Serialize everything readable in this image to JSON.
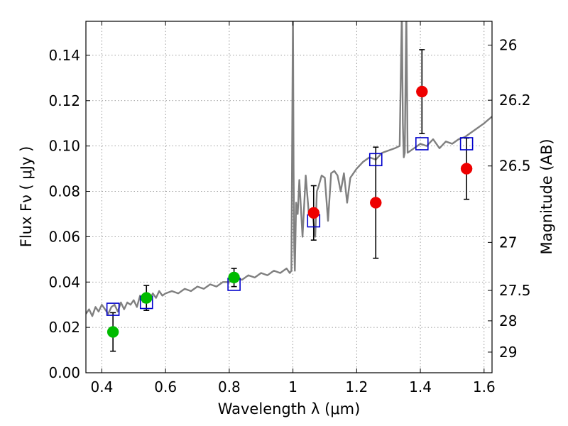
{
  "chart_data": {
    "type": "scatter",
    "title": "",
    "xlabel": "Wavelength  λ (μm)",
    "ylabel": "Flux  Fν  ( μJy )",
    "ylabel_right": "Magnitude (AB)",
    "xlim": [
      0.35,
      1.625
    ],
    "ylim": [
      0.0,
      0.155
    ],
    "grid": true,
    "xticks": [
      0.4,
      0.6,
      0.8,
      1.0,
      1.2,
      1.4,
      1.6
    ],
    "xtick_labels": [
      "0.4",
      "0.6",
      "0.8",
      "1",
      "1.2",
      "1.4",
      "1.6"
    ],
    "yticks": [
      0.0,
      0.02,
      0.04,
      0.06,
      0.08,
      0.1,
      0.12,
      0.14
    ],
    "ytick_labels": [
      "0.00",
      "0.02",
      "0.04",
      "0.06",
      "0.08",
      "0.10",
      "0.12",
      "0.14"
    ],
    "right_ticks": [
      {
        "label": "26",
        "flux": 0.1445
      },
      {
        "label": "26.2",
        "flux": 0.1202
      },
      {
        "label": "26.5",
        "flux": 0.0912
      },
      {
        "label": "27",
        "flux": 0.0575
      },
      {
        "label": "27.5",
        "flux": 0.0363
      },
      {
        "label": "28",
        "flux": 0.0229
      },
      {
        "label": "29",
        "flux": 0.0091
      }
    ],
    "colors": {
      "spectrum": "#808080",
      "model": "#0000cc",
      "green": "#00bb00",
      "red": "#ee0000",
      "errorbar": "#000000",
      "grid": "#808080"
    },
    "series": [
      {
        "kind": "spectrum",
        "x": [
          0.35,
          0.36,
          0.37,
          0.38,
          0.39,
          0.4,
          0.41,
          0.42,
          0.43,
          0.44,
          0.45,
          0.46,
          0.47,
          0.48,
          0.49,
          0.5,
          0.51,
          0.52,
          0.53,
          0.54,
          0.55,
          0.56,
          0.57,
          0.58,
          0.59,
          0.6,
          0.62,
          0.64,
          0.66,
          0.68,
          0.7,
          0.72,
          0.74,
          0.76,
          0.78,
          0.8,
          0.82,
          0.84,
          0.86,
          0.88,
          0.9,
          0.92,
          0.94,
          0.96,
          0.98,
          0.99,
          0.995,
          1.0,
          1.002,
          1.004,
          1.006,
          1.008,
          1.01,
          1.015,
          1.02,
          1.03,
          1.04,
          1.05,
          1.06,
          1.07,
          1.075,
          1.08,
          1.09,
          1.1,
          1.11,
          1.12,
          1.13,
          1.14,
          1.15,
          1.16,
          1.17,
          1.18,
          1.2,
          1.22,
          1.24,
          1.26,
          1.28,
          1.3,
          1.32,
          1.335,
          1.342,
          1.345,
          1.348,
          1.351,
          1.356,
          1.36,
          1.38,
          1.4,
          1.42,
          1.44,
          1.46,
          1.48,
          1.5,
          1.52,
          1.54,
          1.56,
          1.58,
          1.6,
          1.625
        ],
        "y": [
          0.026,
          0.028,
          0.025,
          0.029,
          0.027,
          0.03,
          0.028,
          0.026,
          0.029,
          0.03,
          0.027,
          0.031,
          0.028,
          0.031,
          0.03,
          0.032,
          0.029,
          0.034,
          0.031,
          0.033,
          0.032,
          0.035,
          0.033,
          0.036,
          0.034,
          0.035,
          0.036,
          0.035,
          0.037,
          0.036,
          0.038,
          0.037,
          0.039,
          0.038,
          0.04,
          0.04,
          0.042,
          0.041,
          0.043,
          0.042,
          0.044,
          0.043,
          0.045,
          0.044,
          0.046,
          0.044,
          0.045,
          0.16,
          0.09,
          0.055,
          0.045,
          0.06,
          0.075,
          0.07,
          0.085,
          0.06,
          0.087,
          0.07,
          0.072,
          0.06,
          0.08,
          0.082,
          0.087,
          0.086,
          0.067,
          0.088,
          0.089,
          0.087,
          0.08,
          0.088,
          0.075,
          0.086,
          0.09,
          0.093,
          0.095,
          0.094,
          0.097,
          0.098,
          0.099,
          0.1,
          0.16,
          0.11,
          0.095,
          0.097,
          0.16,
          0.097,
          0.099,
          0.101,
          0.1,
          0.103,
          0.099,
          0.102,
          0.101,
          0.103,
          0.104,
          0.106,
          0.108,
          0.11,
          0.113
        ]
      },
      {
        "name": "",
        "kind": "model",
        "x": [
          0.435,
          0.54,
          0.815,
          1.065,
          1.26,
          1.405,
          1.545
        ],
        "y": [
          0.028,
          0.031,
          0.039,
          0.067,
          0.094,
          0.101,
          0.101
        ]
      },
      {
        "name": "",
        "kind": "green",
        "x": [
          0.435,
          0.54,
          0.815
        ],
        "y": [
          0.018,
          0.033,
          0.042
        ],
        "yerr": [
          0.0085,
          0.0055,
          0.004
        ]
      },
      {
        "name": "",
        "kind": "red",
        "x": [
          1.065,
          1.26,
          1.405,
          1.545
        ],
        "y": [
          0.0705,
          0.075,
          0.124,
          0.09
        ],
        "yerr": [
          0.012,
          0.0245,
          0.0185,
          0.0135
        ]
      }
    ]
  }
}
